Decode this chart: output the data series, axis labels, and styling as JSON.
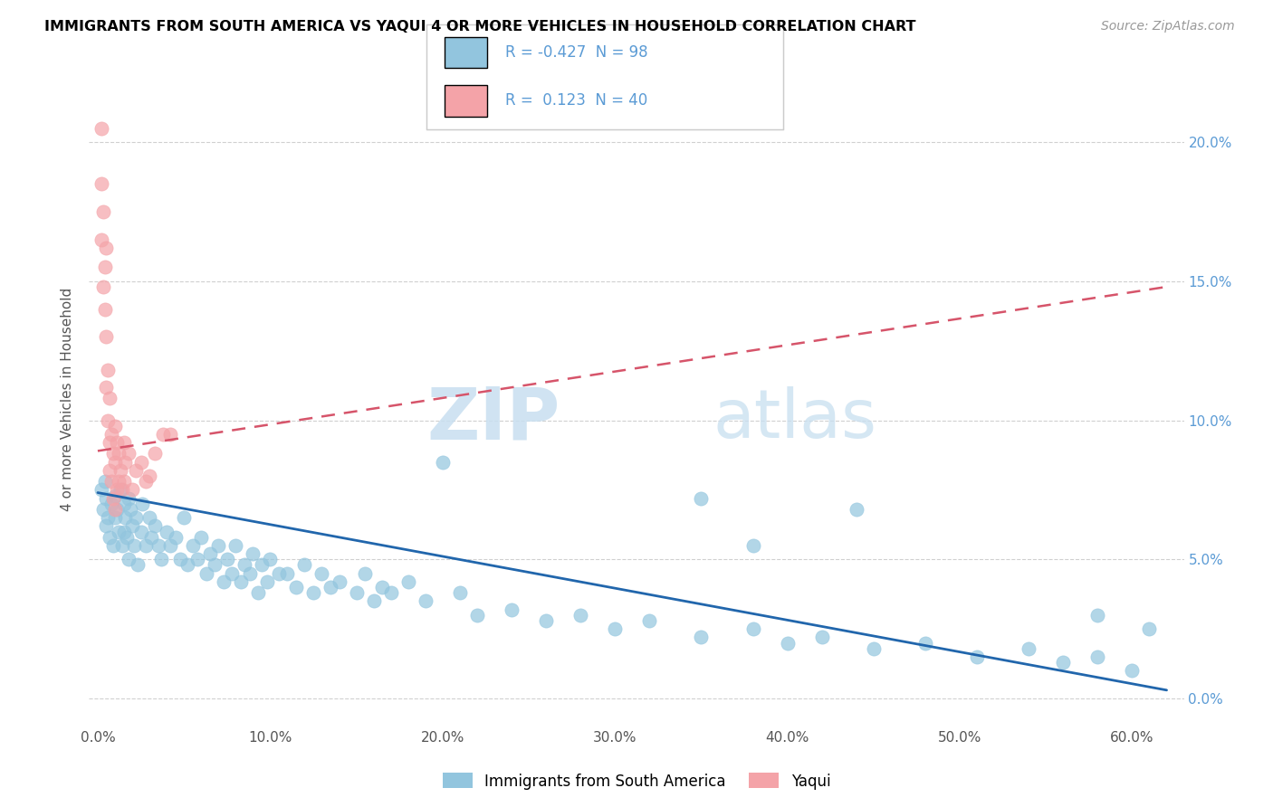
{
  "title": "IMMIGRANTS FROM SOUTH AMERICA VS YAQUI 4 OR MORE VEHICLES IN HOUSEHOLD CORRELATION CHART",
  "source": "Source: ZipAtlas.com",
  "xlabel_ticks": [
    "0.0%",
    "10.0%",
    "20.0%",
    "30.0%",
    "40.0%",
    "50.0%",
    "60.0%"
  ],
  "xlabel_vals": [
    0.0,
    0.1,
    0.2,
    0.3,
    0.4,
    0.5,
    0.6
  ],
  "ylabel_ticks": [
    "0.0%",
    "5.0%",
    "10.0%",
    "15.0%",
    "20.0%"
  ],
  "ylabel_vals": [
    0.0,
    0.05,
    0.1,
    0.15,
    0.2
  ],
  "ylabel_label": "4 or more Vehicles in Household",
  "legend_entries": [
    {
      "label": "Immigrants from South America",
      "color": "#92c5de"
    },
    {
      "label": "Yaqui",
      "color": "#f4a3a8"
    }
  ],
  "r_blue": -0.427,
  "n_blue": 98,
  "r_pink": 0.123,
  "n_pink": 40,
  "blue_color": "#92c5de",
  "pink_color": "#f4a3a8",
  "blue_line_color": "#2166ac",
  "pink_line_color": "#d6546a",
  "watermark_zip": "ZIP",
  "watermark_atlas": "atlas",
  "xlim": [
    -0.005,
    0.63
  ],
  "ylim": [
    -0.01,
    0.225
  ],
  "blue_scatter_x": [
    0.002,
    0.003,
    0.004,
    0.005,
    0.005,
    0.006,
    0.007,
    0.008,
    0.009,
    0.01,
    0.01,
    0.011,
    0.012,
    0.013,
    0.014,
    0.015,
    0.015,
    0.016,
    0.017,
    0.018,
    0.018,
    0.019,
    0.02,
    0.021,
    0.022,
    0.023,
    0.025,
    0.026,
    0.028,
    0.03,
    0.031,
    0.033,
    0.035,
    0.037,
    0.04,
    0.042,
    0.045,
    0.048,
    0.05,
    0.052,
    0.055,
    0.058,
    0.06,
    0.063,
    0.065,
    0.068,
    0.07,
    0.073,
    0.075,
    0.078,
    0.08,
    0.083,
    0.085,
    0.088,
    0.09,
    0.093,
    0.095,
    0.098,
    0.1,
    0.105,
    0.11,
    0.115,
    0.12,
    0.125,
    0.13,
    0.135,
    0.14,
    0.15,
    0.155,
    0.16,
    0.165,
    0.17,
    0.18,
    0.19,
    0.2,
    0.21,
    0.22,
    0.24,
    0.26,
    0.28,
    0.3,
    0.32,
    0.35,
    0.38,
    0.4,
    0.42,
    0.45,
    0.48,
    0.51,
    0.54,
    0.56,
    0.58,
    0.6,
    0.61,
    0.58,
    0.44,
    0.38,
    0.35
  ],
  "blue_scatter_y": [
    0.075,
    0.068,
    0.078,
    0.062,
    0.072,
    0.065,
    0.058,
    0.07,
    0.055,
    0.073,
    0.065,
    0.068,
    0.06,
    0.075,
    0.055,
    0.07,
    0.06,
    0.065,
    0.058,
    0.072,
    0.05,
    0.068,
    0.062,
    0.055,
    0.065,
    0.048,
    0.06,
    0.07,
    0.055,
    0.065,
    0.058,
    0.062,
    0.055,
    0.05,
    0.06,
    0.055,
    0.058,
    0.05,
    0.065,
    0.048,
    0.055,
    0.05,
    0.058,
    0.045,
    0.052,
    0.048,
    0.055,
    0.042,
    0.05,
    0.045,
    0.055,
    0.042,
    0.048,
    0.045,
    0.052,
    0.038,
    0.048,
    0.042,
    0.05,
    0.045,
    0.045,
    0.04,
    0.048,
    0.038,
    0.045,
    0.04,
    0.042,
    0.038,
    0.045,
    0.035,
    0.04,
    0.038,
    0.042,
    0.035,
    0.085,
    0.038,
    0.03,
    0.032,
    0.028,
    0.03,
    0.025,
    0.028,
    0.022,
    0.025,
    0.02,
    0.022,
    0.018,
    0.02,
    0.015,
    0.018,
    0.013,
    0.015,
    0.01,
    0.025,
    0.03,
    0.068,
    0.055,
    0.072
  ],
  "pink_scatter_x": [
    0.002,
    0.002,
    0.002,
    0.003,
    0.003,
    0.004,
    0.004,
    0.005,
    0.005,
    0.005,
    0.006,
    0.006,
    0.007,
    0.007,
    0.007,
    0.008,
    0.008,
    0.009,
    0.009,
    0.01,
    0.01,
    0.01,
    0.011,
    0.011,
    0.012,
    0.012,
    0.013,
    0.014,
    0.015,
    0.015,
    0.016,
    0.018,
    0.02,
    0.022,
    0.025,
    0.028,
    0.03,
    0.033,
    0.038,
    0.042
  ],
  "pink_scatter_y": [
    0.205,
    0.185,
    0.165,
    0.175,
    0.148,
    0.155,
    0.14,
    0.162,
    0.13,
    0.112,
    0.118,
    0.1,
    0.108,
    0.092,
    0.082,
    0.095,
    0.078,
    0.088,
    0.072,
    0.098,
    0.085,
    0.068,
    0.092,
    0.075,
    0.088,
    0.078,
    0.082,
    0.075,
    0.092,
    0.078,
    0.085,
    0.088,
    0.075,
    0.082,
    0.085,
    0.078,
    0.08,
    0.088,
    0.095,
    0.095
  ],
  "blue_line_x": [
    0.0,
    0.62
  ],
  "blue_line_y": [
    0.074,
    0.003
  ],
  "pink_line_x": [
    0.0,
    0.62
  ],
  "pink_line_y": [
    0.089,
    0.148
  ]
}
